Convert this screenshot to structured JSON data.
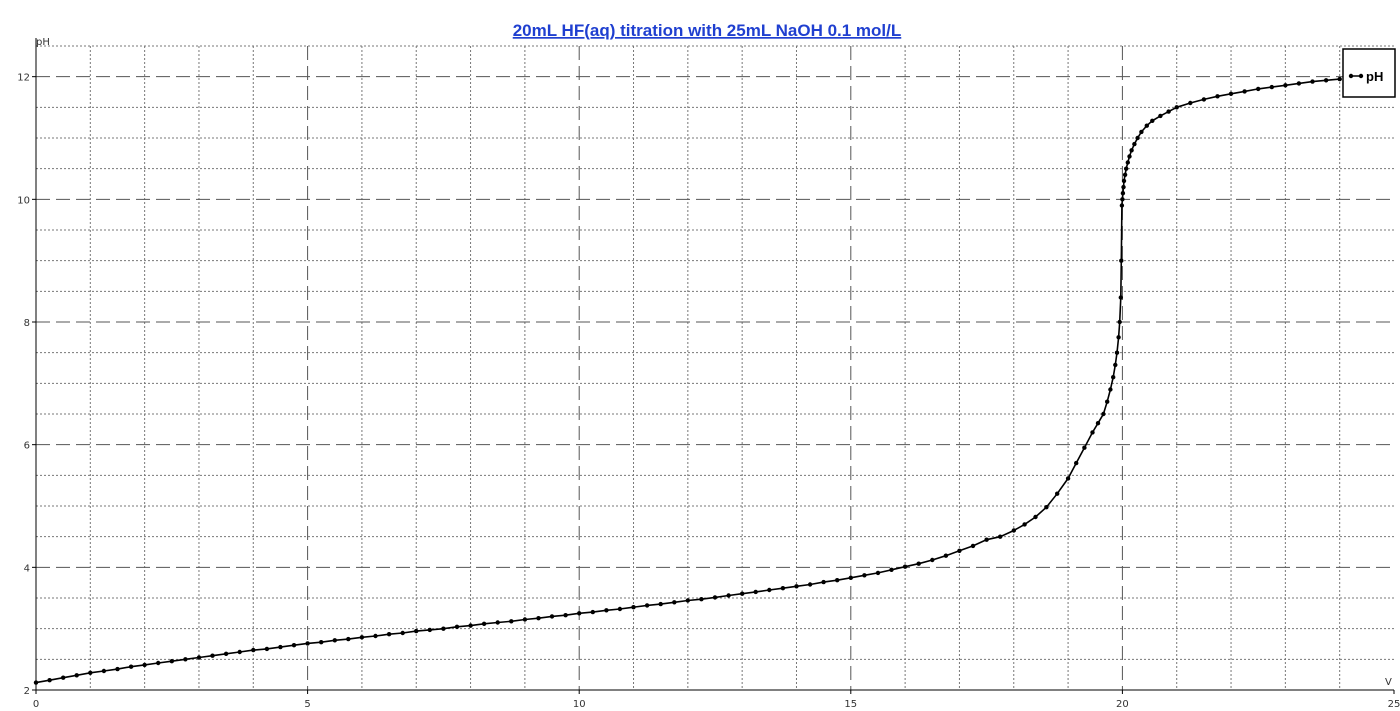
{
  "chart_data": {
    "type": "line",
    "title": "20mL  HF(aq)  titration with 25mL  NaOH 0.1 mol/L",
    "xlabel": "V",
    "ylabel": "pH",
    "xlim": [
      0,
      25
    ],
    "ylim": [
      2,
      12.5
    ],
    "x_ticks": [
      0,
      5,
      10,
      15,
      20,
      25
    ],
    "y_ticks": [
      2,
      4,
      6,
      8,
      10,
      12
    ],
    "x_tick_labels": [
      "0",
      "5",
      "10",
      "15",
      "20",
      "25"
    ],
    "y_tick_labels": [
      "2",
      "4",
      "6",
      "8",
      "10",
      "12"
    ],
    "grid": true,
    "legend_position": "top-right",
    "series": [
      {
        "name": "pH",
        "color": "#000000",
        "marker": "dot",
        "x": [
          0,
          0.25,
          0.5,
          0.75,
          1.0,
          1.25,
          1.5,
          1.75,
          2.0,
          2.25,
          2.5,
          2.75,
          3.0,
          3.25,
          3.5,
          3.75,
          4.0,
          4.25,
          4.5,
          4.75,
          5.0,
          5.25,
          5.5,
          5.75,
          6.0,
          6.25,
          6.5,
          6.75,
          7.0,
          7.25,
          7.5,
          7.75,
          8.0,
          8.25,
          8.5,
          8.75,
          9.0,
          9.25,
          9.5,
          9.75,
          10.0,
          10.25,
          10.5,
          10.75,
          11.0,
          11.25,
          11.5,
          11.75,
          12.0,
          12.25,
          12.5,
          12.75,
          13.0,
          13.25,
          13.5,
          13.75,
          14.0,
          14.25,
          14.5,
          14.75,
          15.0,
          15.25,
          15.5,
          15.75,
          16.0,
          16.25,
          16.5,
          16.75,
          17.0,
          17.25,
          17.5,
          17.75,
          18.0,
          18.2,
          18.4,
          18.6,
          18.8,
          19.0,
          19.15,
          19.3,
          19.45,
          19.55,
          19.65,
          19.72,
          19.78,
          19.83,
          19.87,
          19.9,
          19.93,
          19.95,
          19.97,
          19.98,
          19.99,
          20.0,
          20.01,
          20.02,
          20.03,
          20.05,
          20.07,
          20.1,
          20.13,
          20.17,
          20.22,
          20.28,
          20.35,
          20.45,
          20.55,
          20.7,
          20.85,
          21.0,
          21.25,
          21.5,
          21.75,
          22.0,
          22.25,
          22.5,
          22.75,
          23.0,
          23.25,
          23.5,
          23.75,
          24.0
        ],
        "values": [
          2.12,
          2.16,
          2.2,
          2.24,
          2.28,
          2.31,
          2.34,
          2.38,
          2.41,
          2.44,
          2.47,
          2.5,
          2.53,
          2.56,
          2.59,
          2.62,
          2.65,
          2.67,
          2.7,
          2.73,
          2.76,
          2.78,
          2.81,
          2.83,
          2.86,
          2.88,
          2.91,
          2.93,
          2.96,
          2.98,
          3.0,
          3.03,
          3.05,
          3.08,
          3.1,
          3.12,
          3.15,
          3.17,
          3.2,
          3.22,
          3.25,
          3.27,
          3.3,
          3.32,
          3.35,
          3.38,
          3.4,
          3.43,
          3.46,
          3.48,
          3.51,
          3.54,
          3.57,
          3.6,
          3.63,
          3.66,
          3.69,
          3.72,
          3.76,
          3.79,
          3.83,
          3.87,
          3.91,
          3.96,
          4.01,
          4.06,
          4.12,
          4.19,
          4.27,
          4.35,
          4.45,
          4.5,
          4.6,
          4.7,
          4.82,
          4.98,
          5.2,
          5.45,
          5.7,
          5.95,
          6.2,
          6.35,
          6.5,
          6.7,
          6.9,
          7.1,
          7.3,
          7.5,
          7.75,
          8.0,
          8.4,
          9.0,
          9.9,
          10.0,
          10.1,
          10.2,
          10.3,
          10.4,
          10.5,
          10.6,
          10.7,
          10.8,
          10.9,
          11.0,
          11.1,
          11.2,
          11.28,
          11.36,
          11.43,
          11.5,
          11.57,
          11.63,
          11.68,
          11.72,
          11.76,
          11.8,
          11.83,
          11.86,
          11.89,
          11.92,
          11.94,
          11.96
        ]
      }
    ]
  }
}
